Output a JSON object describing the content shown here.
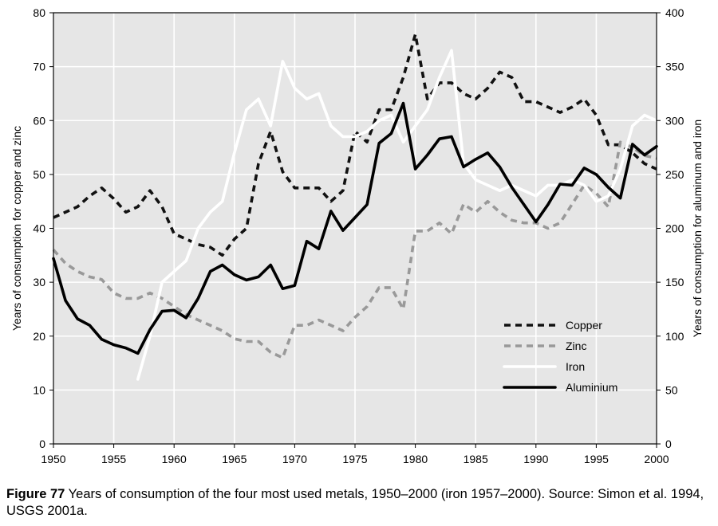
{
  "caption": {
    "label": "Figure 77",
    "text": "Years of consumption of the four most used metals, 1950–2000 (iron 1957–2000). Source: Simon et al. 1994, USGS 2001a."
  },
  "chart_data": {
    "type": "line",
    "title": "",
    "xlabel": "",
    "ylabel_left": "Years of consumption for copper and zinc",
    "ylabel_right": "Years of consumption for aluminum and iron",
    "xlim": [
      1950,
      2000
    ],
    "ylim_left": [
      0,
      80
    ],
    "ylim_right": [
      0,
      400
    ],
    "x_ticks": [
      "1950",
      "1955",
      "1960",
      "1965",
      "1970",
      "1975",
      "1980",
      "1985",
      "1990",
      "1995",
      "2000"
    ],
    "y_left_ticks": [
      "0",
      "10",
      "20",
      "30",
      "40",
      "50",
      "60",
      "70",
      "80"
    ],
    "y_right_ticks": [
      "0",
      "50",
      "100",
      "150",
      "200",
      "250",
      "300",
      "350",
      "400"
    ],
    "grid": true,
    "background_color": "#e6e6e6",
    "legend_position": "bottom-right",
    "series": [
      {
        "name": "Copper",
        "axis": "left",
        "color": "#111111",
        "dash": "dashed",
        "x": [
          1950,
          1951,
          1952,
          1953,
          1954,
          1955,
          1956,
          1957,
          1958,
          1959,
          1960,
          1961,
          1962,
          1963,
          1964,
          1965,
          1966,
          1967,
          1968,
          1969,
          1970,
          1971,
          1972,
          1973,
          1974,
          1975,
          1976,
          1977,
          1978,
          1979,
          1980,
          1981,
          1982,
          1983,
          1984,
          1985,
          1986,
          1987,
          1988,
          1989,
          1990,
          1991,
          1992,
          1993,
          1994,
          1995,
          1996,
          1997,
          1998,
          1999,
          2000
        ],
        "y": [
          42,
          43,
          44,
          46,
          47.5,
          45.5,
          43,
          44,
          47,
          44,
          39,
          38,
          37,
          36.5,
          35,
          38,
          40,
          52,
          58,
          50.5,
          47.5,
          47.5,
          47.5,
          45,
          47,
          58,
          56,
          62,
          62,
          68,
          76,
          64,
          67,
          67,
          65,
          64,
          66,
          69,
          68,
          63.5,
          63.5,
          62.5,
          61.5,
          62.5,
          64,
          61,
          55.5,
          55.5,
          54,
          52,
          51
        ]
      },
      {
        "name": "Zinc",
        "axis": "left",
        "color": "#999999",
        "dash": "dashed",
        "x": [
          1950,
          1951,
          1952,
          1953,
          1954,
          1955,
          1956,
          1957,
          1958,
          1959,
          1960,
          1961,
          1962,
          1963,
          1964,
          1965,
          1966,
          1967,
          1968,
          1969,
          1970,
          1971,
          1972,
          1973,
          1974,
          1975,
          1976,
          1977,
          1978,
          1979,
          1980,
          1981,
          1982,
          1983,
          1984,
          1985,
          1986,
          1987,
          1988,
          1989,
          1990,
          1991,
          1992,
          1993,
          1994,
          1995,
          1996,
          1997,
          1998,
          1999,
          2000
        ],
        "y": [
          36,
          33.5,
          32,
          31,
          30.5,
          28,
          27,
          27,
          28,
          27,
          25.5,
          24,
          23,
          22,
          21,
          19.5,
          19,
          19,
          17,
          16,
          22,
          22,
          23,
          22,
          21,
          23.5,
          25.5,
          29,
          29,
          25,
          39.5,
          39.5,
          41,
          39,
          44.5,
          43,
          45,
          43,
          41.5,
          41,
          41,
          40,
          41,
          44.5,
          48,
          46.5,
          44,
          56,
          55,
          53.5,
          53
        ]
      },
      {
        "name": "Iron",
        "axis": "right",
        "color": "#ffffff",
        "dash": "solid",
        "x": [
          1957,
          1958,
          1959,
          1960,
          1961,
          1962,
          1963,
          1964,
          1965,
          1966,
          1967,
          1968,
          1969,
          1970,
          1971,
          1972,
          1973,
          1974,
          1975,
          1976,
          1977,
          1978,
          1979,
          1980,
          1981,
          1982,
          1983,
          1984,
          1985,
          1986,
          1987,
          1988,
          1989,
          1990,
          1991,
          1992,
          1993,
          1994,
          1995,
          1996,
          1997,
          1998,
          1999,
          2000
        ],
        "y": [
          60,
          100,
          150,
          160,
          170,
          200,
          215,
          225,
          270,
          310,
          320,
          295,
          355,
          330,
          320,
          325,
          295,
          285,
          285,
          290,
          300,
          305,
          280,
          295,
          310,
          340,
          365,
          260,
          245,
          240,
          235,
          240,
          235,
          230,
          240,
          240,
          245,
          240,
          225,
          230,
          255,
          295,
          305,
          300
        ]
      },
      {
        "name": "Aluminium",
        "axis": "right",
        "color": "#000000",
        "dash": "solid",
        "x": [
          1950,
          1951,
          1952,
          1953,
          1954,
          1955,
          1956,
          1957,
          1958,
          1959,
          1960,
          1961,
          1962,
          1963,
          1964,
          1965,
          1966,
          1967,
          1968,
          1969,
          1970,
          1971,
          1972,
          1973,
          1974,
          1975,
          1976,
          1977,
          1978,
          1979,
          1980,
          1981,
          1982,
          1983,
          1984,
          1985,
          1986,
          1987,
          1988,
          1989,
          1990,
          1991,
          1992,
          1993,
          1994,
          1995,
          1996,
          1997,
          1998,
          1999,
          2000
        ],
        "y": [
          172,
          133,
          116,
          110,
          97,
          92,
          89,
          84,
          106,
          123,
          124,
          117,
          135,
          160,
          166,
          157,
          152,
          155,
          166,
          144,
          147,
          188,
          181,
          216,
          198,
          210,
          222,
          279,
          288,
          316,
          255,
          268,
          283,
          285,
          257,
          264,
          270,
          257,
          238,
          222,
          206,
          222,
          241,
          240,
          256,
          250,
          238,
          228,
          278,
          268,
          276
        ]
      }
    ]
  }
}
